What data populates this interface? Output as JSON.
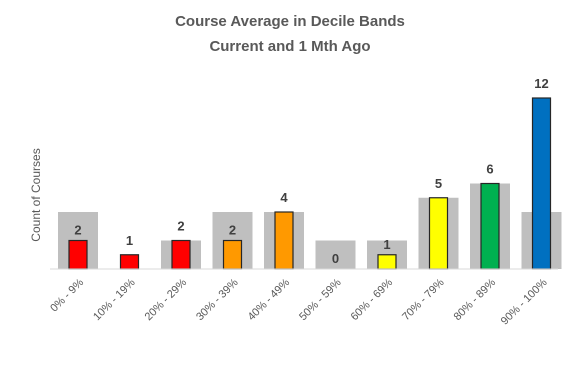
{
  "chart_data": {
    "type": "bar",
    "title": "Course Average in Decile Bands",
    "subtitle": "Current and 1 Mth Ago",
    "xlabel": "",
    "ylabel": "Count of Courses",
    "ylim": [
      0,
      12
    ],
    "grid": false,
    "categories": [
      "0% - 9%",
      "10% - 19%",
      "20% - 29%",
      "30% - 39%",
      "40% - 49%",
      "50% - 59%",
      "60% - 69%",
      "70% - 79%",
      "80% - 89%",
      "90% - 100%"
    ],
    "series": [
      {
        "role": "1 month ago",
        "values": [
          4,
          0,
          2,
          4,
          4,
          2,
          2,
          5,
          6,
          4
        ],
        "color": "#bfbfbf"
      },
      {
        "role": "current",
        "values": [
          2,
          1,
          2,
          2,
          4,
          0,
          1,
          5,
          6,
          12
        ],
        "colors": [
          "#ff0000",
          "#ff0000",
          "#ff0000",
          "#ff9900",
          "#ff9900",
          "#bfbfbf",
          "#ffff00",
          "#ffff00",
          "#00b050",
          "#0070c0"
        ]
      }
    ],
    "data_labels": [
      "2",
      "1",
      "2",
      "2",
      "4",
      "0",
      "1",
      "5",
      "6",
      "12"
    ]
  }
}
